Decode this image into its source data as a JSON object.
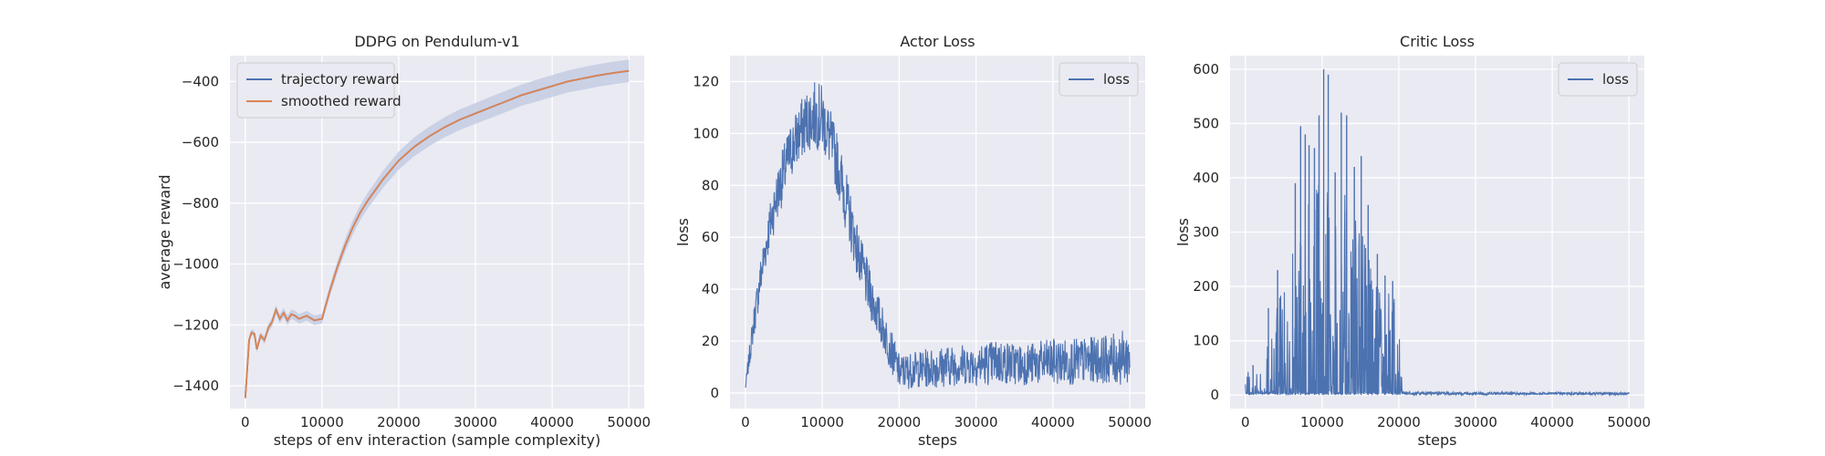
{
  "colors": {
    "background": "#eaeaf2",
    "grid": "#ffffff",
    "blue": "#4c72b0",
    "orange": "#dd8452",
    "band": "#c4cde3"
  },
  "chart_data": [
    {
      "type": "line",
      "title": "DDPG on Pendulum-v1",
      "xlabel": "steps of env interaction (sample complexity)",
      "ylabel": "average reward",
      "xlim": [
        -2000,
        52000
      ],
      "ylim": [
        -1475,
        -315
      ],
      "xticks": [
        0,
        10000,
        20000,
        30000,
        40000,
        50000
      ],
      "yticks": [
        -1400,
        -1200,
        -1000,
        -800,
        -600,
        -400
      ],
      "grid": true,
      "legend_position": "top-left",
      "series": [
        {
          "name": "trajectory reward",
          "color": "blue",
          "x": [
            0,
            500,
            800,
            1200,
            1500,
            2000,
            2500,
            3000,
            3500,
            4000,
            4500,
            5000,
            5500,
            6000,
            6500,
            7000,
            8000,
            9000,
            10000,
            11000,
            12000,
            13000,
            14000,
            15000,
            16000,
            17000,
            18000,
            19000,
            20000,
            22000,
            24000,
            26000,
            28000,
            30000,
            32000,
            34000,
            36000,
            38000,
            40000,
            42000,
            44000,
            46000,
            48000,
            50000
          ],
          "y": [
            -1440,
            -1250,
            -1225,
            -1230,
            -1280,
            -1235,
            -1250,
            -1210,
            -1190,
            -1150,
            -1180,
            -1160,
            -1185,
            -1165,
            -1170,
            -1180,
            -1170,
            -1185,
            -1180,
            -1090,
            -1010,
            -940,
            -880,
            -830,
            -790,
            -755,
            -720,
            -690,
            -660,
            -615,
            -580,
            -550,
            -525,
            -505,
            -485,
            -465,
            -445,
            -430,
            -415,
            -400,
            -390,
            -380,
            -372,
            -365
          ],
          "band": [
            0,
            10,
            10,
            12,
            12,
            12,
            12,
            14,
            15,
            15,
            15,
            16,
            16,
            16,
            16,
            16,
            16,
            16,
            16,
            18,
            20,
            22,
            24,
            25,
            26,
            27,
            28,
            29,
            30,
            31,
            32,
            33,
            34,
            34,
            35,
            35,
            35,
            36,
            36,
            36,
            37,
            37,
            37,
            37
          ]
        },
        {
          "name": "smoothed reward",
          "color": "orange",
          "x": [
            0,
            500,
            800,
            1200,
            1500,
            2000,
            2500,
            3000,
            3500,
            4000,
            4500,
            5000,
            5500,
            6000,
            6500,
            7000,
            8000,
            9000,
            10000,
            11000,
            12000,
            13000,
            14000,
            15000,
            16000,
            17000,
            18000,
            19000,
            20000,
            22000,
            24000,
            26000,
            28000,
            30000,
            32000,
            34000,
            36000,
            38000,
            40000,
            42000,
            44000,
            46000,
            48000,
            50000
          ],
          "y": [
            -1440,
            -1250,
            -1225,
            -1230,
            -1280,
            -1235,
            -1250,
            -1210,
            -1190,
            -1150,
            -1180,
            -1160,
            -1185,
            -1165,
            -1170,
            -1180,
            -1170,
            -1185,
            -1180,
            -1090,
            -1010,
            -940,
            -880,
            -830,
            -790,
            -755,
            -720,
            -690,
            -660,
            -615,
            -580,
            -550,
            -525,
            -505,
            -485,
            -465,
            -445,
            -430,
            -415,
            -400,
            -390,
            -380,
            -372,
            -365
          ]
        }
      ]
    },
    {
      "type": "line",
      "title": "Actor Loss",
      "xlabel": "steps",
      "ylabel": "loss",
      "xlim": [
        -2000,
        52000
      ],
      "ylim": [
        -6,
        130
      ],
      "xticks": [
        0,
        10000,
        20000,
        30000,
        40000,
        50000
      ],
      "yticks": [
        0,
        20,
        40,
        60,
        80,
        100,
        120
      ],
      "grid": true,
      "legend_position": "top-right",
      "series": [
        {
          "name": "loss",
          "color": "blue",
          "x": [
            0,
            1000,
            2000,
            3000,
            4000,
            5000,
            6000,
            7000,
            8000,
            9000,
            10000,
            11000,
            12000,
            13000,
            14000,
            15000,
            16000,
            17000,
            18000,
            19000,
            20000,
            22000,
            25000,
            28000,
            30000,
            33000,
            36000,
            40000,
            43000,
            46000,
            48000,
            50000
          ],
          "center": [
            2,
            25,
            45,
            62,
            75,
            85,
            94,
            100,
            105,
            107,
            106,
            98,
            88,
            75,
            62,
            50,
            40,
            32,
            24,
            16,
            8,
            9,
            10,
            11,
            11,
            12,
            11,
            12,
            12,
            13,
            13,
            14
          ],
          "amp": [
            2,
            6,
            8,
            9,
            10,
            11,
            11,
            12,
            12,
            13,
            13,
            12,
            12,
            12,
            11,
            10,
            10,
            9,
            8,
            8,
            7,
            7,
            8,
            8,
            8,
            9,
            8,
            9,
            9,
            9,
            10,
            11
          ]
        }
      ]
    },
    {
      "type": "line",
      "title": "Critic Loss",
      "xlabel": "steps",
      "ylabel": "loss",
      "xlim": [
        -2000,
        52000
      ],
      "ylim": [
        -25,
        625
      ],
      "xticks": [
        0,
        10000,
        20000,
        30000,
        40000,
        50000
      ],
      "yticks": [
        0,
        100,
        200,
        300,
        400,
        500,
        600
      ],
      "grid": true,
      "legend_position": "top-right",
      "series": [
        {
          "name": "loss",
          "color": "blue",
          "x": [
            0,
            1000,
            2000,
            3000,
            4000,
            5000,
            6000,
            7000,
            8000,
            9000,
            10000,
            11000,
            12000,
            13000,
            14000,
            15000,
            16000,
            17000,
            18000,
            19000,
            19800,
            20500,
            25000,
            30000,
            35000,
            40000,
            45000,
            50000
          ],
          "envelope": [
            60,
            20,
            60,
            110,
            160,
            200,
            270,
            320,
            360,
            390,
            420,
            390,
            380,
            370,
            350,
            320,
            280,
            240,
            200,
            190,
            170,
            8,
            6,
            6,
            5,
            5,
            5,
            4
          ],
          "spikes": [
            [
              6500,
              390
            ],
            [
              7200,
              495
            ],
            [
              7800,
              480
            ],
            [
              8300,
              460
            ],
            [
              9000,
              455
            ],
            [
              9600,
              515
            ],
            [
              10200,
              600
            ],
            [
              10800,
              590
            ],
            [
              11700,
              410
            ],
            [
              12500,
              520
            ],
            [
              13200,
              515
            ],
            [
              14200,
              420
            ],
            [
              15100,
              440
            ],
            [
              16000,
              350
            ],
            [
              17200,
              260
            ],
            [
              18200,
              220
            ],
            [
              19200,
              210
            ],
            [
              4200,
              230
            ],
            [
              3000,
              160
            ],
            [
              1000,
              55
            ]
          ]
        }
      ]
    }
  ]
}
